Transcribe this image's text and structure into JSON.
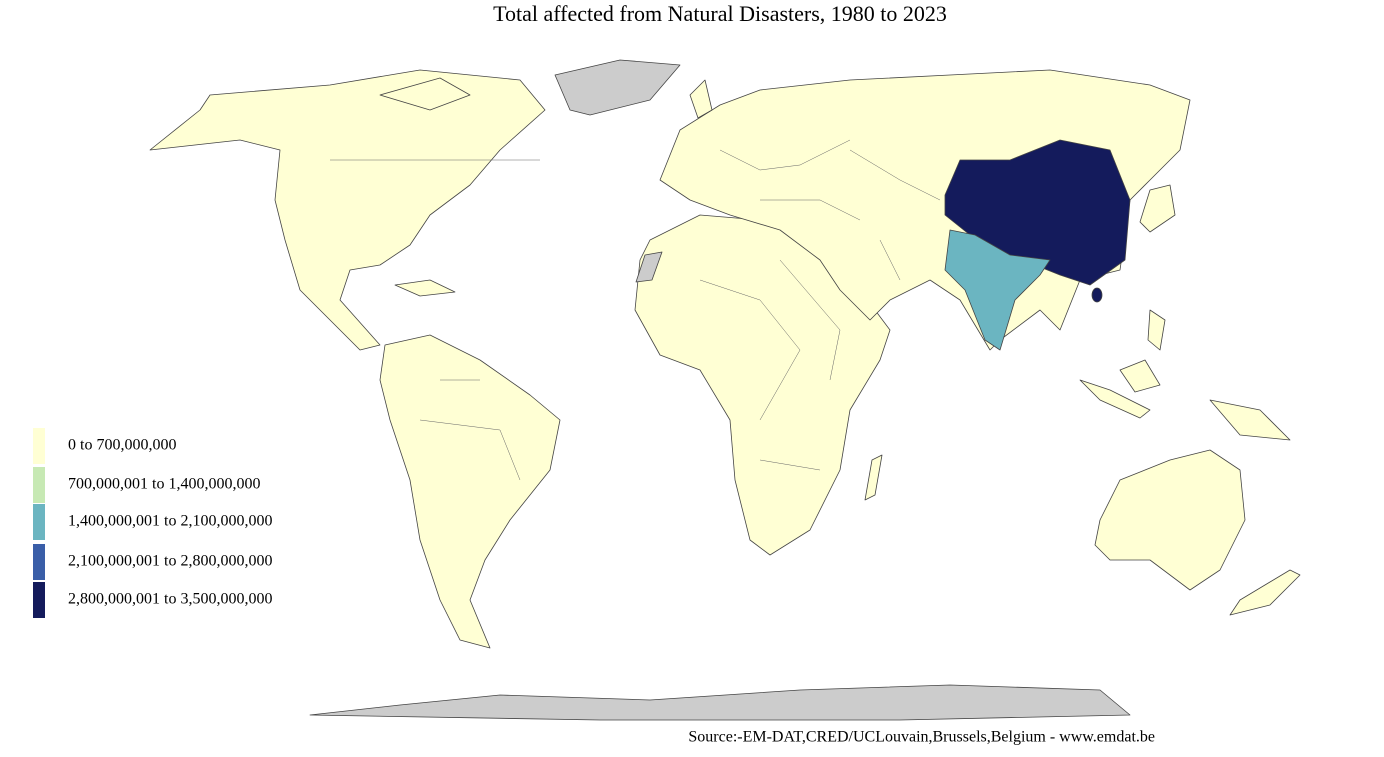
{
  "title": "Total affected from Natural Disasters, 1980 to 2023",
  "legend": [
    {
      "label": "0 to 700,000,000",
      "color": "#ffffd4"
    },
    {
      "label": "700,000,001 to 1,400,000,000",
      "color": "#c7e9b4"
    },
    {
      "label": "1,400,000,001 to 2,100,000,000",
      "color": "#6bb5c1"
    },
    {
      "label": "2,100,000,001 to 2,800,000,000",
      "color": "#3a5ea8"
    },
    {
      "label": "2,800,000,001 to 3,500,000,000",
      "color": "#141b5c"
    }
  ],
  "no_data_color": "#cccccc",
  "source": "Source:-EM-DAT,CRED/UCLouvain,Brussels,Belgium - www.emdat.be"
}
